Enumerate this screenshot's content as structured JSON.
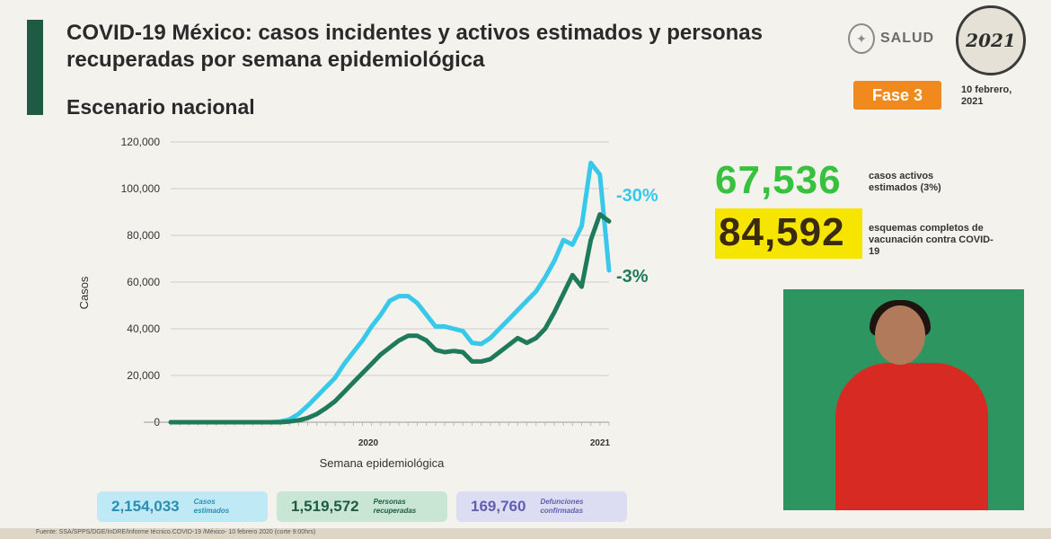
{
  "header": {
    "title": "COVID-19 México: casos incidentes y activos estimados y personas recuperadas por semana epidemiológica",
    "subtitle": "Escenario nacional",
    "salud_logo_text": "SALUD",
    "year_logo_text": "2021",
    "phase_badge": "Fase 3",
    "date": "10 febrero, 2021"
  },
  "colors": {
    "accent": "#1f5a45",
    "estimated": "#38c8ea",
    "recovered": "#1f7a5c",
    "active_green": "#38c13e",
    "vaccine_yellow": "#f5e500",
    "phase_orange": "#f08a1e"
  },
  "stats": {
    "active_cases_value": "67,536",
    "active_cases_label": "casos activos estimados (3%)",
    "vaccination_value": "84,592",
    "vaccination_label": "esquemas completos de vacunación contra COVID-19"
  },
  "pills": [
    {
      "value": "2,154,033",
      "label": "Casos estimados"
    },
    {
      "value": "1,519,572",
      "label": "Personas recuperadas"
    },
    {
      "value": "169,760",
      "label": "Defunciones confirmadas"
    }
  ],
  "source": "Fuente: SSA/SPPS/DGE/InDRE/Informe técnico.COVID-19 /México- 10 febrero 2020 (corte 9:00hrs)",
  "chart_data": {
    "type": "line",
    "xlabel": "Semana epidemiológica",
    "ylabel": "Casos",
    "ylim": [
      0,
      120000
    ],
    "yticks": [
      "0",
      "20,000",
      "40,000",
      "60,000",
      "80,000",
      "100,000",
      "120,000"
    ],
    "year_labels": [
      "2020",
      "2021"
    ],
    "grid": true,
    "series": [
      {
        "values": [
          0,
          0,
          0,
          0,
          0,
          0,
          0,
          0,
          0,
          0,
          0,
          0,
          300,
          1200,
          3500,
          7000,
          11000,
          15000,
          19000,
          25000,
          30000,
          35000,
          41000,
          46000,
          52000,
          54000,
          54000,
          51000,
          46000,
          41000,
          41000,
          40000,
          39000,
          34000,
          33500,
          36000,
          40000,
          44000,
          48000,
          52000,
          56000,
          62000,
          69000,
          78000,
          76000,
          84000,
          111000,
          106000,
          65000
        ],
        "annotation": "-30%"
      },
      {
        "values": [
          0,
          0,
          0,
          0,
          0,
          0,
          0,
          0,
          0,
          0,
          0,
          0,
          0,
          300,
          800,
          1800,
          3500,
          6000,
          9000,
          13000,
          17000,
          21000,
          25000,
          29000,
          32000,
          35000,
          37000,
          37000,
          35000,
          31000,
          30000,
          30500,
          30000,
          26000,
          26000,
          27000,
          30000,
          33000,
          36000,
          34000,
          36000,
          40000,
          47000,
          55000,
          63000,
          58000,
          78000,
          89000,
          86000
        ],
        "annotation": "-3%"
      }
    ]
  }
}
